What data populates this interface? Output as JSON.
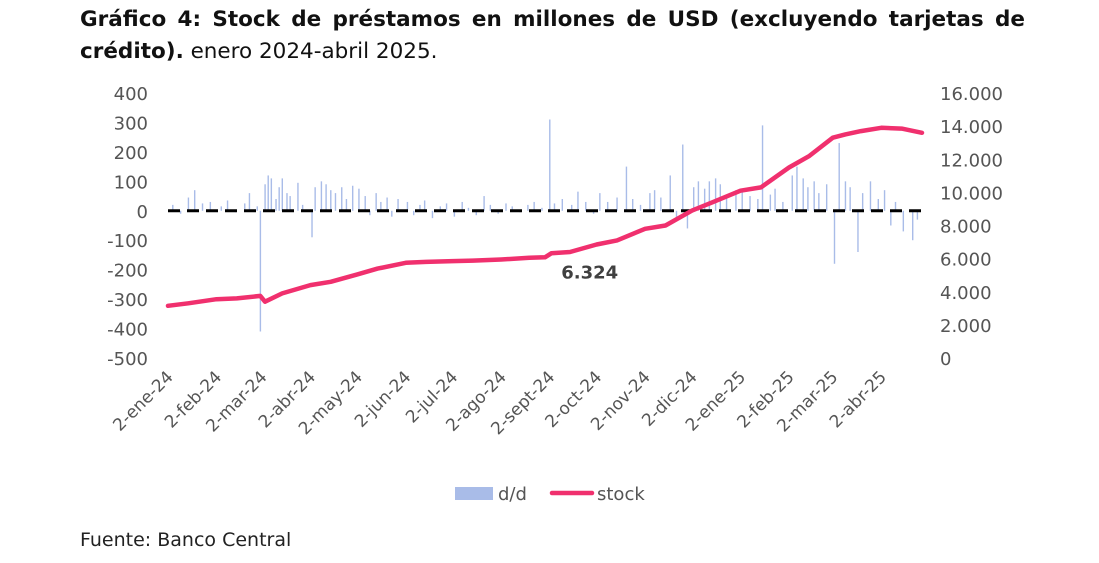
{
  "title": {
    "bold": "Gráfico 4: Stock de préstamos en millones de USD (excluyendo tarjetas de crédito).",
    "normal": " enero 2024-abril 2025."
  },
  "source": "Fuente: Banco Central",
  "chart_data": {
    "type": "bar+line",
    "x_tick_labels": [
      "2-ene-24",
      "2-feb-24",
      "2-mar-24",
      "2-abr-24",
      "2-may-24",
      "2-jun-24",
      "2-jul-24",
      "2-ago-24",
      "2-sept-24",
      "2-oct-24",
      "2-nov-24",
      "2-dic-24",
      "2-ene-25",
      "2-feb-25",
      "2-mar-25",
      "2-abr-25"
    ],
    "x_tick_dates": [
      "2024-01-02",
      "2024-02-02",
      "2024-03-02",
      "2024-04-02",
      "2024-05-02",
      "2024-06-02",
      "2024-07-02",
      "2024-08-02",
      "2024-09-02",
      "2024-10-02",
      "2024-11-02",
      "2024-12-02",
      "2025-01-02",
      "2025-02-02",
      "2025-03-02",
      "2025-04-02"
    ],
    "left_axis": {
      "ylim": [
        -500,
        400
      ],
      "ticks": [
        "400",
        "300",
        "200",
        "100",
        "0",
        "-100",
        "-200",
        "-300",
        "-400",
        "-500"
      ],
      "tick_values": [
        400,
        300,
        200,
        100,
        0,
        -100,
        -200,
        -300,
        -400,
        -500
      ]
    },
    "right_axis": {
      "ylim": [
        0,
        16000
      ],
      "ticks": [
        "16.000",
        "14.000",
        "12.000",
        "10.000",
        "8.000",
        "6.000",
        "4.000",
        "2.000",
        "0"
      ],
      "tick_values": [
        16000,
        14000,
        12000,
        10000,
        8000,
        6000,
        4000,
        2000,
        0
      ]
    },
    "zero_line": {
      "style": "dashed",
      "color": "#000000"
    },
    "series": [
      {
        "name": "d/d",
        "type": "bar",
        "axis": "left",
        "color": "#a9bce8",
        "points": [
          [
            "2024-01-05",
            20
          ],
          [
            "2024-01-10",
            -10
          ],
          [
            "2024-01-15",
            45
          ],
          [
            "2024-01-19",
            70
          ],
          [
            "2024-01-24",
            25
          ],
          [
            "2024-01-29",
            30
          ],
          [
            "2024-02-05",
            15
          ],
          [
            "2024-02-09",
            35
          ],
          [
            "2024-02-14",
            -5
          ],
          [
            "2024-02-20",
            25
          ],
          [
            "2024-02-23",
            60
          ],
          [
            "2024-02-28",
            15
          ],
          [
            "2024-03-01",
            -410
          ],
          [
            "2024-03-04",
            90
          ],
          [
            "2024-03-06",
            120
          ],
          [
            "2024-03-08",
            110
          ],
          [
            "2024-03-11",
            40
          ],
          [
            "2024-03-13",
            80
          ],
          [
            "2024-03-15",
            110
          ],
          [
            "2024-03-18",
            60
          ],
          [
            "2024-03-20",
            50
          ],
          [
            "2024-03-25",
            95
          ],
          [
            "2024-03-28",
            20
          ],
          [
            "2024-04-03",
            -90
          ],
          [
            "2024-04-05",
            80
          ],
          [
            "2024-04-09",
            100
          ],
          [
            "2024-04-12",
            90
          ],
          [
            "2024-04-15",
            70
          ],
          [
            "2024-04-18",
            60
          ],
          [
            "2024-04-22",
            80
          ],
          [
            "2024-04-25",
            40
          ],
          [
            "2024-04-29",
            85
          ],
          [
            "2024-05-03",
            75
          ],
          [
            "2024-05-07",
            50
          ],
          [
            "2024-05-10",
            -15
          ],
          [
            "2024-05-14",
            60
          ],
          [
            "2024-05-17",
            30
          ],
          [
            "2024-05-21",
            45
          ],
          [
            "2024-05-24",
            -20
          ],
          [
            "2024-05-28",
            40
          ],
          [
            "2024-06-03",
            30
          ],
          [
            "2024-06-07",
            -15
          ],
          [
            "2024-06-11",
            20
          ],
          [
            "2024-06-14",
            35
          ],
          [
            "2024-06-19",
            -25
          ],
          [
            "2024-06-24",
            15
          ],
          [
            "2024-06-28",
            25
          ],
          [
            "2024-07-03",
            -20
          ],
          [
            "2024-07-08",
            30
          ],
          [
            "2024-07-12",
            10
          ],
          [
            "2024-07-17",
            -15
          ],
          [
            "2024-07-22",
            50
          ],
          [
            "2024-07-26",
            20
          ],
          [
            "2024-07-31",
            -10
          ],
          [
            "2024-08-05",
            25
          ],
          [
            "2024-08-09",
            15
          ],
          [
            "2024-08-14",
            -5
          ],
          [
            "2024-08-19",
            20
          ],
          [
            "2024-08-23",
            30
          ],
          [
            "2024-08-28",
            10
          ],
          [
            "2024-09-02",
            310
          ],
          [
            "2024-09-05",
            25
          ],
          [
            "2024-09-10",
            40
          ],
          [
            "2024-09-16",
            20
          ],
          [
            "2024-09-20",
            65
          ],
          [
            "2024-09-25",
            30
          ],
          [
            "2024-09-30",
            -10
          ],
          [
            "2024-10-04",
            60
          ],
          [
            "2024-10-09",
            30
          ],
          [
            "2024-10-15",
            45
          ],
          [
            "2024-10-21",
            150
          ],
          [
            "2024-10-25",
            40
          ],
          [
            "2024-10-30",
            20
          ],
          [
            "2024-11-05",
            60
          ],
          [
            "2024-11-08",
            70
          ],
          [
            "2024-11-12",
            45
          ],
          [
            "2024-11-18",
            120
          ],
          [
            "2024-11-22",
            -30
          ],
          [
            "2024-11-26",
            225
          ],
          [
            "2024-11-29",
            -60
          ],
          [
            "2024-12-03",
            80
          ],
          [
            "2024-12-06",
            100
          ],
          [
            "2024-12-10",
            75
          ],
          [
            "2024-12-13",
            100
          ],
          [
            "2024-12-17",
            110
          ],
          [
            "2024-12-20",
            90
          ],
          [
            "2024-12-24",
            50
          ],
          [
            "2024-12-30",
            70
          ],
          [
            "2025-01-03",
            65
          ],
          [
            "2025-01-08",
            50
          ],
          [
            "2025-01-13",
            40
          ],
          [
            "2025-01-16",
            290
          ],
          [
            "2025-01-21",
            55
          ],
          [
            "2025-01-24",
            75
          ],
          [
            "2025-01-29",
            30
          ],
          [
            "2025-02-04",
            120
          ],
          [
            "2025-02-07",
            150
          ],
          [
            "2025-02-11",
            110
          ],
          [
            "2025-02-14",
            80
          ],
          [
            "2025-02-18",
            100
          ],
          [
            "2025-02-21",
            60
          ],
          [
            "2025-02-26",
            90
          ],
          [
            "2025-03-03",
            -180
          ],
          [
            "2025-03-06",
            230
          ],
          [
            "2025-03-10",
            100
          ],
          [
            "2025-03-13",
            80
          ],
          [
            "2025-03-18",
            -140
          ],
          [
            "2025-03-21",
            60
          ],
          [
            "2025-03-26",
            100
          ],
          [
            "2025-03-31",
            40
          ],
          [
            "2025-04-04",
            70
          ],
          [
            "2025-04-08",
            -50
          ],
          [
            "2025-04-11",
            30
          ],
          [
            "2025-04-16",
            -70
          ],
          [
            "2025-04-22",
            -100
          ],
          [
            "2025-04-25",
            -30
          ]
        ]
      },
      {
        "name": "stock",
        "type": "line",
        "axis": "right",
        "color": "#f0306e",
        "points": [
          [
            "2024-01-02",
            3150
          ],
          [
            "2024-01-15",
            3300
          ],
          [
            "2024-02-02",
            3550
          ],
          [
            "2024-02-15",
            3600
          ],
          [
            "2024-03-01",
            3750
          ],
          [
            "2024-03-04",
            3400
          ],
          [
            "2024-03-15",
            3900
          ],
          [
            "2024-04-02",
            4400
          ],
          [
            "2024-04-15",
            4600
          ],
          [
            "2024-05-02",
            5050
          ],
          [
            "2024-05-15",
            5400
          ],
          [
            "2024-06-02",
            5750
          ],
          [
            "2024-06-15",
            5800
          ],
          [
            "2024-07-02",
            5850
          ],
          [
            "2024-07-15",
            5880
          ],
          [
            "2024-08-02",
            5950
          ],
          [
            "2024-08-20",
            6050
          ],
          [
            "2024-08-30",
            6080
          ],
          [
            "2024-09-03",
            6324
          ],
          [
            "2024-09-15",
            6400
          ],
          [
            "2024-10-02",
            6850
          ],
          [
            "2024-10-15",
            7100
          ],
          [
            "2024-11-02",
            7800
          ],
          [
            "2024-11-15",
            8000
          ],
          [
            "2024-12-02",
            8900
          ],
          [
            "2024-12-15",
            9400
          ],
          [
            "2025-01-02",
            10100
          ],
          [
            "2025-01-15",
            10300
          ],
          [
            "2025-02-02",
            11500
          ],
          [
            "2025-02-15",
            12200
          ],
          [
            "2025-03-02",
            13300
          ],
          [
            "2025-03-10",
            13500
          ],
          [
            "2025-03-20",
            13700
          ],
          [
            "2025-04-02",
            13900
          ],
          [
            "2025-04-15",
            13850
          ],
          [
            "2025-04-28",
            13600
          ]
        ]
      }
    ],
    "annotations": [
      {
        "text": "6.324",
        "x": "2024-09-03",
        "y": 6324,
        "axis": "right"
      }
    ],
    "legend": {
      "placement": "bottom",
      "items": [
        "d/d",
        "stock"
      ]
    }
  }
}
